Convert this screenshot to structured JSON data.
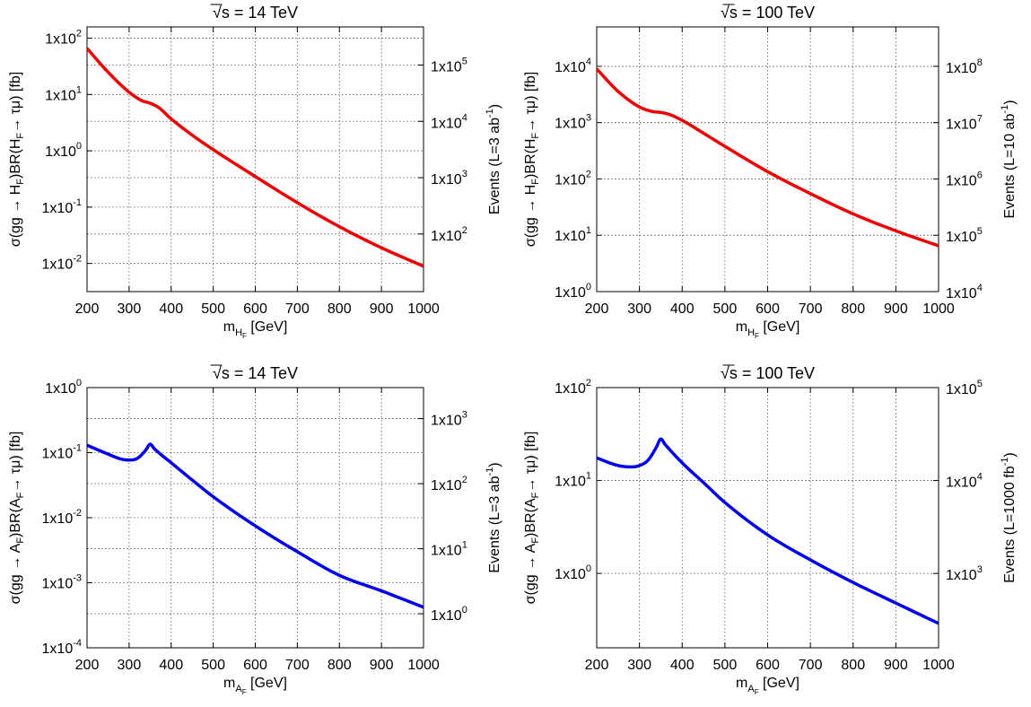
{
  "chart_data": [
    {
      "type": "line",
      "title": "√s = 14 TeV",
      "xlabel": {
        "main": "m",
        "sub": "H",
        "subsub": "F",
        "unit": " [GeV]"
      },
      "ylabel": "σ(gg → H_F)BR(H_F→ τμ) [fb]",
      "ylabel_parts": {
        "p1": "σ(gg ",
        "arrow": "→",
        "p2": " H",
        "s1": "F",
        "p3": ")BR(H",
        "s2": "F",
        "p4": "→ τμ) [fb]"
      },
      "y2label_parts": {
        "p1": "Events (L=3 ab",
        "sup": "-1",
        "p2": ")"
      },
      "xlim": [
        200,
        1000
      ],
      "ylim_exp": [
        -2.5,
        2.2
      ],
      "y2shift": 3.477,
      "scale": "log",
      "grid": true,
      "xticks": [
        "200",
        "300",
        "400",
        "500",
        "600",
        "700",
        "800",
        "900",
        "1000"
      ],
      "yticks": [
        {
          "base": "1x10",
          "exp": "-2"
        },
        {
          "base": "1x10",
          "exp": "-1"
        },
        {
          "base": "1x10",
          "exp": "0"
        },
        {
          "base": "1x10",
          "exp": "1"
        },
        {
          "base": "1x10",
          "exp": "2"
        }
      ],
      "y2ticks": [
        {
          "base": "1x10",
          "exp": "2"
        },
        {
          "base": "1x10",
          "exp": "3"
        },
        {
          "base": "1x10",
          "exp": "4"
        },
        {
          "base": "1x10",
          "exp": "5"
        }
      ],
      "series": [
        {
          "color": "#ee0000",
          "x": [
            200,
            250,
            300,
            330,
            350,
            370,
            400,
            450,
            500,
            600,
            700,
            800,
            900,
            1000
          ],
          "y": [
            66,
            25,
            11,
            7.8,
            7.0,
            5.9,
            3.7,
            1.9,
            1.05,
            0.35,
            0.12,
            0.045,
            0.019,
            0.0089
          ]
        }
      ]
    },
    {
      "type": "line",
      "title": "√s = 100 TeV",
      "xlabel": {
        "main": "m",
        "sub": "H",
        "subsub": "F",
        "unit": " [GeV]"
      },
      "ylabel": "σ(gg → H_F)BR(H_F→ τμ) [fb]",
      "ylabel_parts": {
        "p1": "σ(gg ",
        "arrow": "→",
        "p2": " H",
        "s1": "F",
        "p3": ")BR(H",
        "s2": "F",
        "p4": "→ τμ) [fb]"
      },
      "y2label_parts": {
        "p1": "Events (L=10 ab",
        "sup": "-1",
        "p2": ")"
      },
      "xlim": [
        200,
        1000
      ],
      "ylim_exp": [
        0,
        4.7
      ],
      "y2shift": 4.0,
      "scale": "log",
      "grid": true,
      "xticks": [
        "200",
        "300",
        "400",
        "500",
        "600",
        "700",
        "800",
        "900",
        "1000"
      ],
      "yticks": [
        {
          "base": "1x10",
          "exp": "0"
        },
        {
          "base": "1x10",
          "exp": "1"
        },
        {
          "base": "1x10",
          "exp": "2"
        },
        {
          "base": "1x10",
          "exp": "3"
        },
        {
          "base": "1x10",
          "exp": "4"
        }
      ],
      "y2ticks": [
        {
          "base": "1x10",
          "exp": "4"
        },
        {
          "base": "1x10",
          "exp": "5"
        },
        {
          "base": "1x10",
          "exp": "6"
        },
        {
          "base": "1x10",
          "exp": "7"
        },
        {
          "base": "1x10",
          "exp": "8"
        }
      ],
      "series": [
        {
          "color": "#ee0000",
          "x": [
            200,
            250,
            300,
            330,
            350,
            370,
            400,
            450,
            500,
            600,
            700,
            800,
            900,
            1000
          ],
          "y": [
            9000,
            3600,
            1900,
            1580,
            1520,
            1400,
            1100,
            650,
            380,
            135,
            55,
            24,
            12,
            6.5
          ]
        }
      ]
    },
    {
      "type": "line",
      "title": "√s = 14 TeV",
      "xlabel": {
        "main": "m",
        "sub": "A",
        "subsub": "F",
        "unit": " [GeV]"
      },
      "ylabel": "σ(gg → A_F)BR(A_F→ τμ) [fb]",
      "ylabel_parts": {
        "p1": "σ(gg ",
        "arrow": "→",
        "p2": " A",
        "s1": "F",
        "p3": ")BR(A",
        "s2": "F",
        "p4": "→ τμ) [fb]"
      },
      "y2label_parts": {
        "p1": "Events (L=3 ab",
        "sup": "-1",
        "p2": ")"
      },
      "xlim": [
        200,
        1000
      ],
      "ylim_exp": [
        -4,
        0
      ],
      "y2shift": 3.477,
      "scale": "log",
      "grid": true,
      "xticks": [
        "200",
        "300",
        "400",
        "500",
        "600",
        "700",
        "800",
        "900",
        "1000"
      ],
      "yticks": [
        {
          "base": "1x10",
          "exp": "-4"
        },
        {
          "base": "1x10",
          "exp": "-3"
        },
        {
          "base": "1x10",
          "exp": "-2"
        },
        {
          "base": "1x10",
          "exp": "-1"
        },
        {
          "base": "1x10",
          "exp": "0"
        }
      ],
      "y2ticks": [
        {
          "base": "1x10",
          "exp": "0"
        },
        {
          "base": "1x10",
          "exp": "1"
        },
        {
          "base": "1x10",
          "exp": "2"
        },
        {
          "base": "1x10",
          "exp": "3"
        }
      ],
      "series": [
        {
          "color": "#0000ee",
          "x": [
            200,
            250,
            280,
            300,
            320,
            340,
            350,
            360,
            400,
            450,
            500,
            600,
            700,
            800,
            900,
            1000
          ],
          "y": [
            0.13,
            0.095,
            0.08,
            0.077,
            0.082,
            0.11,
            0.135,
            0.115,
            0.07,
            0.038,
            0.021,
            0.0075,
            0.003,
            0.0013,
            0.00075,
            0.00042
          ]
        }
      ]
    },
    {
      "type": "line",
      "title": "√s = 100 TeV",
      "xlabel": {
        "main": "m",
        "sub": "A",
        "subsub": "F",
        "unit": " [GeV]"
      },
      "ylabel": "σ(gg → A_F)BR(A_F→ τμ) [fb]",
      "ylabel_parts": {
        "p1": "σ(gg ",
        "arrow": "→",
        "p2": " A",
        "s1": "F",
        "p3": ")BR(A",
        "s2": "F",
        "p4": "→ τμ) [fb]"
      },
      "y2label_parts": {
        "p1": "Events (L=1000 fb",
        "sup": "-1",
        "p2": ")"
      },
      "xlim": [
        200,
        1000
      ],
      "ylim_exp": [
        -0.8,
        2
      ],
      "y2shift": 3.0,
      "scale": "log",
      "grid": true,
      "xticks": [
        "200",
        "300",
        "400",
        "500",
        "600",
        "700",
        "800",
        "900",
        "1000"
      ],
      "yticks": [
        {
          "base": "1x10",
          "exp": "0"
        },
        {
          "base": "1x10",
          "exp": "1"
        },
        {
          "base": "1x10",
          "exp": "2"
        }
      ],
      "y2ticks": [
        {
          "base": "1x10",
          "exp": "3"
        },
        {
          "base": "1x10",
          "exp": "4"
        },
        {
          "base": "1x10",
          "exp": "5"
        }
      ],
      "series": [
        {
          "color": "#0000ee",
          "x": [
            200,
            250,
            280,
            300,
            320,
            340,
            350,
            360,
            400,
            450,
            500,
            600,
            700,
            800,
            900,
            1000
          ],
          "y": [
            17.5,
            14.5,
            14.0,
            14.5,
            16.5,
            23,
            28,
            24.5,
            15.5,
            9.5,
            5.8,
            2.6,
            1.4,
            0.8,
            0.48,
            0.29
          ]
        }
      ]
    }
  ]
}
